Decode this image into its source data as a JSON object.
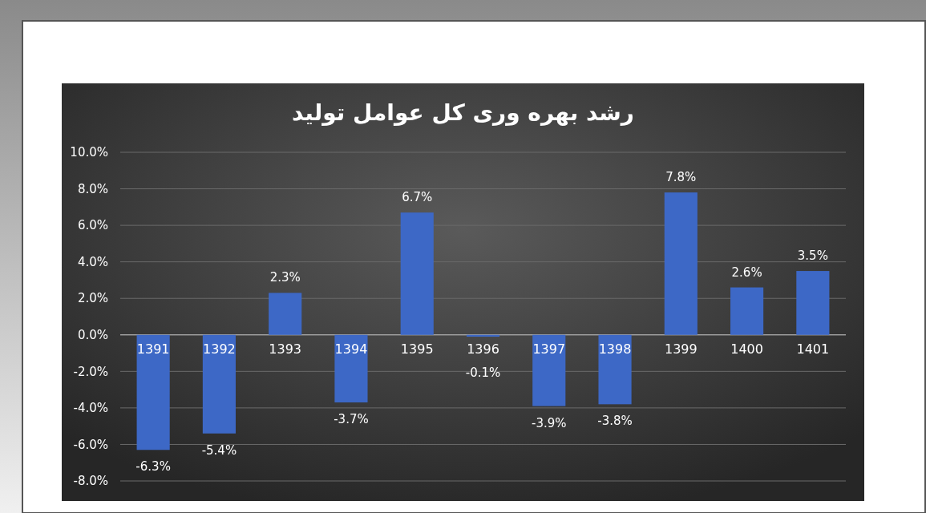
{
  "chart_data": {
    "type": "bar",
    "title": "رشد بهره وری کل عوامل تولید",
    "categories": [
      "1391",
      "1392",
      "1393",
      "1394",
      "1395",
      "1396",
      "1397",
      "1398",
      "1399",
      "1400",
      "1401"
    ],
    "values": [
      -6.3,
      -5.4,
      2.3,
      -3.7,
      6.7,
      -0.1,
      -3.9,
      -3.8,
      7.8,
      2.6,
      3.5
    ],
    "value_labels": [
      "-6.3%",
      "-5.4%",
      "2.3%",
      "-3.7%",
      "6.7%",
      "-0.1%",
      "-3.9%",
      "-3.8%",
      "7.8%",
      "2.6%",
      "3.5%"
    ],
    "color": "#3d68c6",
    "ylim": [
      -8,
      10
    ],
    "yticks": [
      {
        "value": -8,
        "label": "-8.0%"
      },
      {
        "value": -6,
        "label": "-6.0%"
      },
      {
        "value": -4,
        "label": "-4.0%"
      },
      {
        "value": -2,
        "label": "-2.0%"
      },
      {
        "value": 0,
        "label": "0.0%"
      },
      {
        "value": 2,
        "label": "2.0%"
      },
      {
        "value": 4,
        "label": "4.0%"
      },
      {
        "value": 6,
        "label": "6.0%"
      },
      {
        "value": 8,
        "label": "8.0%"
      },
      {
        "value": 10,
        "label": "10.0%"
      }
    ],
    "grid": "y"
  }
}
